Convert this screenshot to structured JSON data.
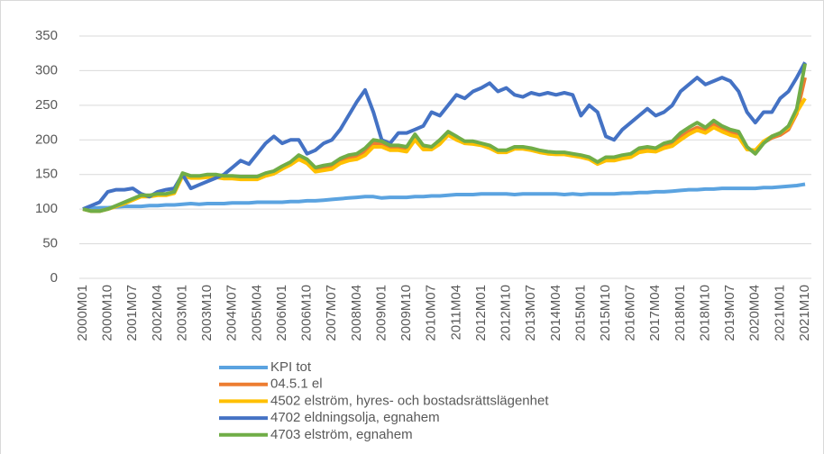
{
  "chart_data": {
    "type": "line",
    "categories": [
      "2000M01",
      null,
      null,
      "2000M10",
      null,
      null,
      "2001M07",
      null,
      null,
      "2002M04",
      null,
      null,
      "2003M01",
      null,
      null,
      "2003M10",
      null,
      null,
      "2004M07",
      null,
      null,
      "2005M04",
      null,
      null,
      "2006M01",
      null,
      null,
      "2006M10",
      null,
      null,
      "2007M07",
      null,
      null,
      "2008M04",
      null,
      null,
      "2009M01",
      null,
      null,
      "2009M10",
      null,
      null,
      "2010M07",
      null,
      null,
      "2011M04",
      null,
      null,
      "2012M01",
      null,
      null,
      "2012M10",
      null,
      null,
      "2013M07",
      null,
      null,
      "2014M04",
      null,
      null,
      "2015M01",
      null,
      null,
      "2015M10",
      null,
      null,
      "2016M07",
      null,
      null,
      "2017M04",
      null,
      null,
      "2018M01",
      null,
      null,
      "2018M10",
      null,
      null,
      "2019M07",
      null,
      null,
      "2020M04",
      null,
      null,
      "2021M01",
      null,
      null,
      "2021M10"
    ],
    "series": [
      {
        "name": "KPI tot",
        "color": "#5ba3e0",
        "values": [
          100,
          101,
          102,
          102,
          103,
          104,
          104,
          104,
          105,
          105,
          106,
          106,
          107,
          108,
          107,
          108,
          108,
          108,
          109,
          109,
          109,
          110,
          110,
          110,
          110,
          111,
          111,
          112,
          112,
          113,
          114,
          115,
          116,
          117,
          118,
          118,
          116,
          117,
          117,
          117,
          118,
          118,
          119,
          119,
          120,
          121,
          121,
          121,
          122,
          122,
          122,
          122,
          121,
          122,
          122,
          122,
          122,
          122,
          121,
          122,
          121,
          122,
          122,
          122,
          122,
          123,
          123,
          124,
          124,
          125,
          125,
          126,
          127,
          128,
          128,
          129,
          129,
          130,
          130,
          130,
          130,
          130,
          131,
          131,
          132,
          133,
          134,
          136
        ]
      },
      {
        "name": "04.5.1 el",
        "color": "#ed7d31",
        "values": [
          100,
          97,
          97,
          100,
          104,
          109,
          114,
          119,
          119,
          121,
          121,
          124,
          150,
          147,
          147,
          148,
          148,
          146,
          146,
          145,
          145,
          145,
          150,
          153,
          160,
          166,
          175,
          169,
          157,
          160,
          162,
          170,
          175,
          177,
          184,
          195,
          194,
          188,
          188,
          186,
          204,
          189,
          188,
          197,
          210,
          202,
          196,
          195,
          193,
          190,
          183,
          183,
          188,
          188,
          186,
          183,
          181,
          180,
          180,
          178,
          176,
          173,
          166,
          172,
          172,
          175,
          177,
          184,
          186,
          185,
          191,
          194,
          204,
          212,
          218,
          213,
          222,
          215,
          210,
          207,
          188,
          182,
          196,
          203,
          207,
          215,
          238,
          290
        ]
      },
      {
        "name": "4502 elström, hyres- och bostadsrättslägenhet",
        "color": "#ffc000",
        "values": [
          100,
          97,
          97,
          100,
          104,
          108,
          113,
          118,
          118,
          120,
          120,
          123,
          148,
          145,
          145,
          146,
          146,
          144,
          144,
          143,
          143,
          143,
          148,
          151,
          158,
          164,
          172,
          166,
          154,
          156,
          158,
          166,
          170,
          172,
          178,
          190,
          190,
          185,
          185,
          183,
          200,
          186,
          186,
          194,
          207,
          200,
          195,
          194,
          192,
          188,
          182,
          182,
          187,
          187,
          185,
          182,
          180,
          179,
          179,
          177,
          175,
          172,
          165,
          170,
          170,
          173,
          175,
          182,
          184,
          183,
          188,
          191,
          200,
          208,
          214,
          210,
          218,
          212,
          207,
          204,
          186,
          185,
          198,
          205,
          210,
          218,
          240,
          260
        ]
      },
      {
        "name": "4702 eldningsolja, egnahem",
        "color": "#4472c4",
        "values": [
          100,
          105,
          110,
          125,
          128,
          128,
          130,
          122,
          118,
          125,
          128,
          130,
          150,
          130,
          135,
          140,
          145,
          150,
          160,
          170,
          165,
          180,
          195,
          205,
          195,
          200,
          200,
          180,
          185,
          195,
          200,
          215,
          235,
          255,
          272,
          240,
          200,
          195,
          210,
          210,
          215,
          220,
          240,
          235,
          250,
          265,
          260,
          270,
          275,
          282,
          270,
          275,
          265,
          262,
          268,
          265,
          268,
          265,
          268,
          265,
          235,
          250,
          240,
          205,
          200,
          215,
          225,
          235,
          245,
          235,
          240,
          250,
          270,
          280,
          290,
          280,
          285,
          290,
          285,
          270,
          240,
          225,
          240,
          240,
          260,
          270,
          290,
          312
        ]
      },
      {
        "name": "4703 elström, egnahem",
        "color": "#70ad47",
        "values": [
          100,
          97,
          97,
          100,
          105,
          110,
          115,
          120,
          120,
          122,
          122,
          125,
          152,
          148,
          148,
          150,
          150,
          148,
          148,
          147,
          147,
          147,
          152,
          155,
          162,
          168,
          178,
          172,
          160,
          163,
          165,
          173,
          178,
          180,
          188,
          200,
          198,
          192,
          192,
          190,
          208,
          192,
          190,
          200,
          212,
          205,
          198,
          198,
          195,
          192,
          185,
          185,
          190,
          190,
          188,
          185,
          183,
          182,
          182,
          180,
          178,
          175,
          168,
          175,
          175,
          178,
          180,
          188,
          190,
          188,
          195,
          198,
          210,
          218,
          225,
          218,
          228,
          220,
          215,
          212,
          190,
          180,
          195,
          205,
          210,
          220,
          245,
          310
        ]
      }
    ],
    "ylim": [
      0,
      350
    ],
    "yticks": [
      0,
      50,
      100,
      150,
      200,
      250,
      300,
      350
    ],
    "grid": true
  }
}
